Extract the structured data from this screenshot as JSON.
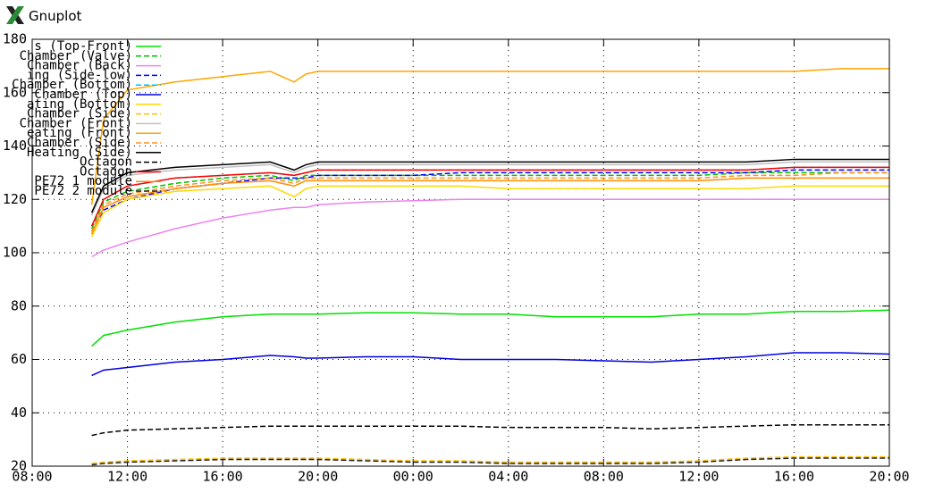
{
  "window_title": "Gnuplot",
  "chart_data": {
    "type": "line",
    "x": [
      10.5,
      11,
      12,
      14,
      16,
      18,
      19,
      19.5,
      20,
      22,
      24,
      26,
      28,
      30,
      32,
      34,
      36,
      38,
      40,
      42,
      44
    ],
    "xlim": [
      8,
      44
    ],
    "xticks": [
      {
        "value": 8,
        "label": "08:00"
      },
      {
        "value": 12,
        "label": "12:00"
      },
      {
        "value": 16,
        "label": "16:00"
      },
      {
        "value": 20,
        "label": "20:00"
      },
      {
        "value": 24,
        "label": "00:00"
      },
      {
        "value": 28,
        "label": "04:00"
      },
      {
        "value": 32,
        "label": "08:00"
      },
      {
        "value": 36,
        "label": "12:00"
      },
      {
        "value": 40,
        "label": "16:00"
      },
      {
        "value": 44,
        "label": "20:00"
      }
    ],
    "ylim": [
      20,
      180
    ],
    "yticks": [
      20,
      40,
      60,
      80,
      100,
      120,
      140,
      160,
      180
    ],
    "grid": true,
    "legend": "top-left",
    "series": [
      {
        "name": "s (Top-Front)",
        "color": "#00e000",
        "dash": false,
        "values": [
          65,
          69,
          71,
          74,
          76,
          77,
          77,
          77,
          77,
          77.5,
          77.5,
          77,
          77,
          76,
          76,
          76,
          77,
          77,
          78,
          78,
          78.5
        ]
      },
      {
        "name": "Chamber (Valve)",
        "color": "#00c000",
        "dash": true,
        "values": [
          109,
          119,
          123,
          126,
          128,
          129,
          127,
          129,
          129,
          129,
          129,
          129,
          129,
          129,
          129,
          129,
          129,
          130,
          130,
          130,
          130
        ]
      },
      {
        "name": "Chamber (Back)",
        "color": "#ee82ee",
        "dash": false,
        "values": [
          98.5,
          101,
          104,
          109,
          113,
          116,
          117,
          117,
          118,
          119,
          119.5,
          120,
          120,
          120,
          120,
          120,
          120,
          120,
          120,
          120,
          120
        ]
      },
      {
        "name": "ing (Side-low)",
        "color": "#0000ff",
        "dash": true,
        "values": [
          108,
          116,
          120,
          124,
          126,
          128,
          128,
          128,
          129,
          129,
          129,
          130,
          130,
          130,
          130,
          130,
          130,
          130,
          131,
          131,
          131
        ]
      },
      {
        "name": "Chamber (Bottom)",
        "color": "#00c0ff",
        "dash": true,
        "values": [
          110,
          120,
          125,
          128,
          129,
          130,
          129,
          130,
          131,
          131,
          131,
          131,
          131,
          131,
          131,
          131,
          131,
          131,
          132,
          132,
          132
        ]
      },
      {
        "name": "Chamber (Top)",
        "color": "#0000e0",
        "dash": false,
        "values": [
          54,
          56,
          57,
          59,
          60,
          61.5,
          61,
          60.5,
          60.5,
          61,
          61,
          60,
          60,
          60,
          59.5,
          59,
          60,
          61,
          62.5,
          62.5,
          62
        ]
      },
      {
        "name": "ating (Bottom)",
        "color": "#ffd700",
        "dash": false,
        "values": [
          106,
          115,
          120,
          123,
          124,
          125,
          121,
          124,
          125,
          125,
          125,
          125,
          124,
          124,
          124,
          124,
          124,
          124,
          125,
          125,
          125
        ]
      },
      {
        "name": "Chamber (Side)",
        "color": "#ffc000",
        "dash": true,
        "values": [
          21,
          21.5,
          22,
          22.5,
          23,
          23,
          23,
          23,
          23,
          22.5,
          22,
          22,
          21.5,
          21.5,
          21.5,
          21.5,
          22,
          23,
          23.5,
          23.5,
          23.5
        ]
      },
      {
        "name": "Chamber (Front)",
        "color": "#c0c0c0",
        "dash": false,
        "values": [
          114,
          124,
          129,
          131,
          132,
          133,
          130,
          132,
          133,
          133,
          133,
          133,
          133,
          133,
          133,
          133,
          133,
          133,
          134,
          134,
          134
        ]
      },
      {
        "name": "eating (Front)",
        "color": "#ffa500",
        "dash": false,
        "values": [
          118,
          150,
          161,
          164,
          166,
          168,
          164,
          167,
          168,
          168,
          168,
          168,
          168,
          168,
          168,
          168,
          168,
          168,
          168,
          169,
          169
        ]
      },
      {
        "name": "Chamber (Side)",
        "color": "#ff9020",
        "dash": true,
        "values": [
          108,
          118,
          122,
          125,
          127,
          128,
          126,
          128,
          128,
          128,
          128,
          128,
          128,
          128,
          128,
          128,
          128,
          129,
          129,
          130,
          130
        ]
      },
      {
        "name": "Heating (Side)",
        "color": "#000000",
        "dash": false,
        "values": [
          115,
          125,
          130,
          132,
          133,
          134,
          131,
          133,
          134,
          134,
          134,
          134,
          134,
          134,
          134,
          134,
          134,
          134,
          135,
          135,
          135
        ]
      },
      {
        "name": "Octagon",
        "color": "#000000",
        "dash": true,
        "values": [
          31.5,
          32.5,
          33.5,
          34,
          34.5,
          35,
          35,
          35,
          35,
          35,
          35,
          35,
          34.5,
          34.5,
          34.5,
          34,
          34.5,
          35,
          35.5,
          35.5,
          35.5
        ]
      },
      {
        "name": "Octagon",
        "color": "#ff0000",
        "dash": false,
        "values": [
          110,
          120,
          125,
          128,
          129,
          130,
          129,
          130,
          131,
          131,
          131,
          131,
          131,
          131,
          131,
          131,
          131,
          131,
          132,
          132,
          132
        ]
      },
      {
        "name": "PE72 1 module",
        "color": "#ff8c00",
        "dash": false,
        "values": [
          107,
          117,
          121,
          124,
          126,
          127,
          125,
          127,
          127,
          127,
          127,
          127,
          127,
          127,
          127,
          127,
          127,
          128,
          128,
          128,
          128
        ]
      },
      {
        "name": "PE72 2 module",
        "color": "#202020",
        "dash": true,
        "values": [
          20.5,
          21,
          21.5,
          22,
          22.5,
          22.5,
          22.5,
          22.5,
          22.5,
          22,
          21.5,
          21.5,
          21,
          21,
          21,
          21,
          21.5,
          22.5,
          23,
          23,
          23
        ]
      }
    ]
  }
}
